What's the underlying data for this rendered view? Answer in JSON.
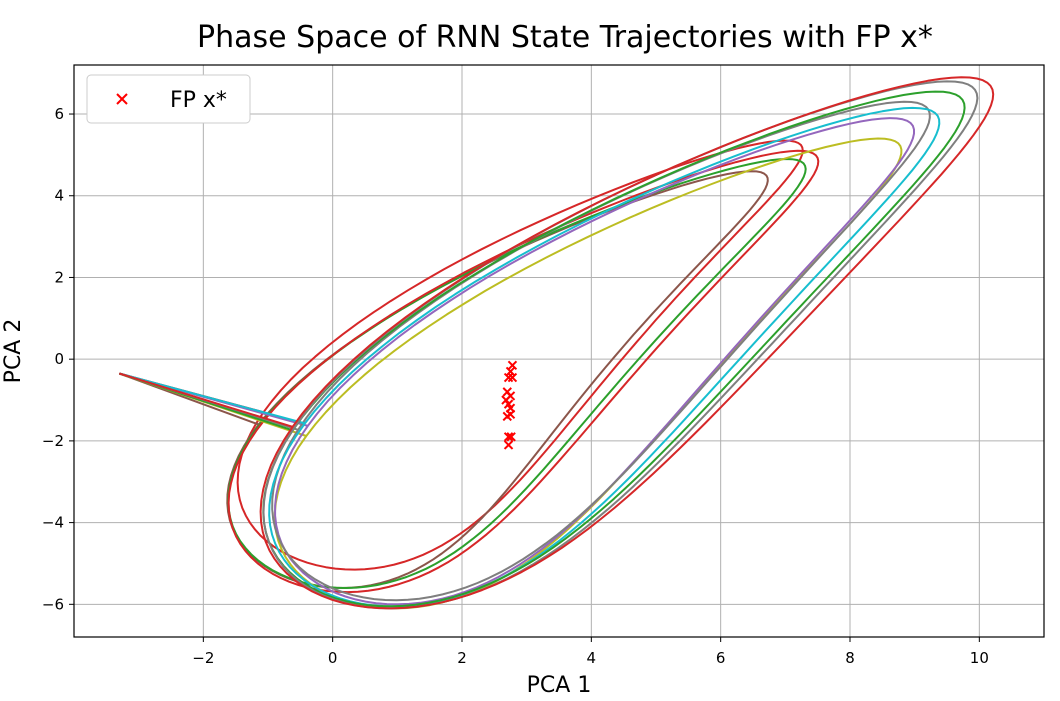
{
  "chart_data": {
    "type": "line",
    "title": "Phase Space of RNN State Trajectories with FP x*",
    "xlabel": "PCA 1",
    "ylabel": "PCA 2",
    "xlim": [
      -4.0,
      11.0
    ],
    "ylim": [
      -6.8,
      7.2
    ],
    "xticks": [
      -2,
      0,
      2,
      4,
      6,
      8,
      10
    ],
    "yticks": [
      -6,
      -4,
      -2,
      0,
      2,
      4,
      6
    ],
    "xtick_labels": [
      "−2",
      "0",
      "2",
      "4",
      "6",
      "8",
      "10"
    ],
    "ytick_labels": [
      "−6",
      "−4",
      "−2",
      "0",
      "2",
      "4",
      "6"
    ],
    "grid": true,
    "legend": {
      "placement": "top-left",
      "entries": [
        {
          "label": "FP x*",
          "marker": "x",
          "color": "#ff0000"
        }
      ]
    },
    "start_point": [
      -3.3,
      -0.35
    ],
    "fixed_points": {
      "marker": "x",
      "color": "#ff0000",
      "points": [
        [
          2.78,
          -0.15
        ],
        [
          2.75,
          -0.3
        ],
        [
          2.72,
          -0.45
        ],
        [
          2.78,
          -0.45
        ],
        [
          2.7,
          -0.8
        ],
        [
          2.75,
          -0.9
        ],
        [
          2.68,
          -1.0
        ],
        [
          2.72,
          -1.1
        ],
        [
          2.75,
          -1.2
        ],
        [
          2.7,
          -1.4
        ],
        [
          2.75,
          -1.35
        ],
        [
          2.72,
          -1.9
        ],
        [
          2.76,
          -1.9
        ],
        [
          2.72,
          -2.1
        ]
      ]
    },
    "series": [
      {
        "color": "#d62728",
        "amp_x": 4.1,
        "amp_y": 5.25,
        "offset_x": 2.9,
        "offset_y": 0.1,
        "phase": 0.95
      },
      {
        "color": "#8c564b",
        "amp_x": 3.9,
        "amp_y": 5.1,
        "offset_x": 2.55,
        "offset_y": -0.5,
        "phase": 0.95
      },
      {
        "color": "#2ca02c",
        "amp_x": 4.2,
        "amp_y": 5.25,
        "offset_x": 2.85,
        "offset_y": -0.35,
        "phase": 0.95
      },
      {
        "color": "#d62728",
        "amp_x": 4.3,
        "amp_y": 5.4,
        "offset_x": 2.95,
        "offset_y": -0.3,
        "phase": 0.95
      },
      {
        "color": "#bcbd22",
        "amp_x": 4.6,
        "amp_y": 5.75,
        "offset_x": 3.95,
        "offset_y": -0.35,
        "phase": 0.95
      },
      {
        "color": "#9467bd",
        "amp_x": 4.7,
        "amp_y": 5.95,
        "offset_x": 4.05,
        "offset_y": -0.05,
        "phase": 0.95
      },
      {
        "color": "#7f7f7f",
        "amp_x": 4.85,
        "amp_y": 6.1,
        "offset_x": 4.15,
        "offset_y": 0.2,
        "phase": 0.95
      },
      {
        "color": "#17becf",
        "amp_x": 4.95,
        "amp_y": 6.1,
        "offset_x": 4.2,
        "offset_y": 0.05,
        "phase": 0.95
      },
      {
        "color": "#2ca02c",
        "amp_x": 5.2,
        "amp_y": 6.3,
        "offset_x": 4.35,
        "offset_y": 0.25,
        "phase": 0.95
      },
      {
        "color": "#7f7f7f",
        "amp_x": 5.3,
        "amp_y": 6.45,
        "offset_x": 4.45,
        "offset_y": 0.35,
        "phase": 0.95
      },
      {
        "color": "#d62728",
        "amp_x": 5.45,
        "amp_y": 6.5,
        "offset_x": 4.55,
        "offset_y": 0.4,
        "phase": 0.95
      }
    ]
  }
}
